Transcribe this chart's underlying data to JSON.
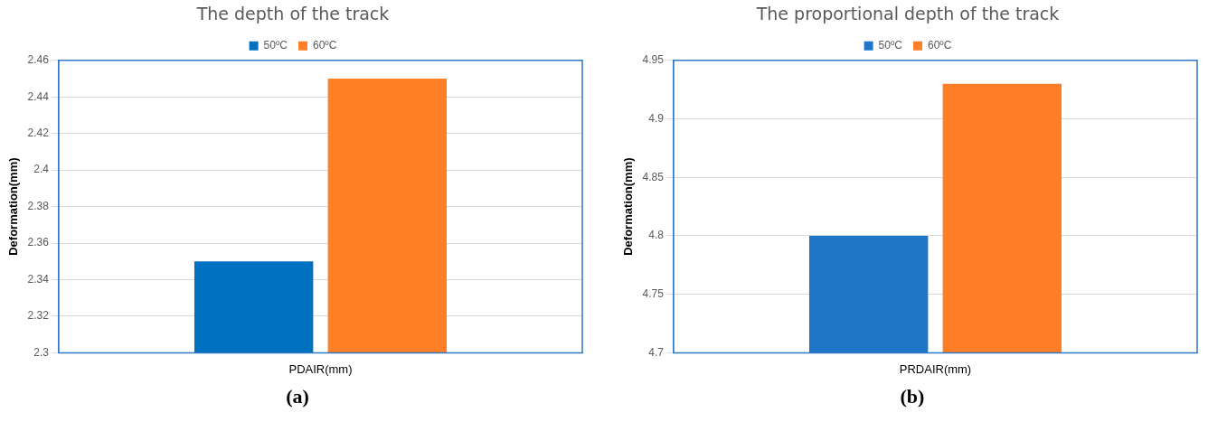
{
  "chart_data": [
    {
      "type": "bar",
      "title": "The depth of the track",
      "ylabel": "Deformation(mm)",
      "categories": [
        "PDAIR(mm)"
      ],
      "series": [
        {
          "name": "50ºC",
          "color": "#0070c0",
          "values": [
            2.35
          ]
        },
        {
          "name": "60ºC",
          "color": "#ff7f27",
          "values": [
            2.45
          ]
        }
      ],
      "ylim": [
        2.3,
        2.46
      ],
      "yticks": [
        2.3,
        2.32,
        2.34,
        2.36,
        2.38,
        2.4,
        2.42,
        2.44,
        2.46
      ],
      "grid": "y",
      "legend": "top",
      "annotations": [
        "(a)"
      ]
    },
    {
      "type": "bar",
      "title": "The proportional depth of the track",
      "ylabel": "Deformation(mm)",
      "categories": [
        "PRDAIR(mm)"
      ],
      "series": [
        {
          "name": "50ºC",
          "color": "#1f75c8",
          "values": [
            4.8
          ]
        },
        {
          "name": "60ºC",
          "color": "#fd7e26",
          "values": [
            4.93
          ]
        }
      ],
      "ylim": [
        4.7,
        4.95
      ],
      "yticks": [
        4.7,
        4.75,
        4.8,
        4.85,
        4.9,
        4.95
      ],
      "grid": "y",
      "legend": "top",
      "annotations": [
        "(b)"
      ]
    }
  ]
}
